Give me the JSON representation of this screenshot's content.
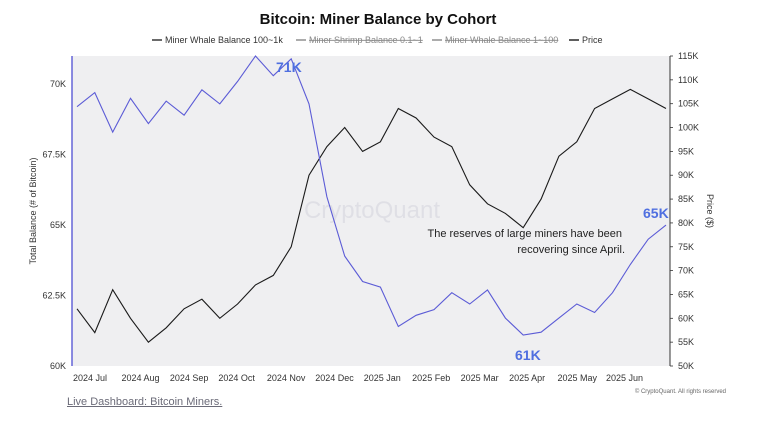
{
  "chart_data": {
    "type": "line",
    "title": "Bitcoin: Miner Balance by Cohort",
    "legend": {
      "placement": "top-center",
      "entries": [
        {
          "name": "Miner Whale Balance 100~1k",
          "color": "#2b2b2b",
          "visible": true
        },
        {
          "name": "Miner Shrimp Balance 0.1~1",
          "color": "#888888",
          "visible": false
        },
        {
          "name": "Miner Whale Balance 1~100",
          "color": "#888888",
          "visible": false
        },
        {
          "name": "Price",
          "color": "#1a1a1a",
          "visible": true
        }
      ]
    },
    "xlabel": "",
    "x_ticks": [
      "2024 Jul",
      "2024 Aug",
      "2024 Sep",
      "2024 Oct",
      "2024 Nov",
      "2024 Dec",
      "2025 Jan",
      "2025 Feb",
      "2025 Mar",
      "2025 Apr",
      "2025 May",
      "2025 Jun"
    ],
    "left_axis": {
      "label": "Total Balance (# of Bitcoin)",
      "ticks": [
        "60K",
        "62.5K",
        "65K",
        "67.5K",
        "70K"
      ],
      "ylim": [
        60000,
        71000
      ]
    },
    "right_axis": {
      "label": "Price ($)",
      "ticks": [
        "50K",
        "55K",
        "60K",
        "65K",
        "70K",
        "75K",
        "80K",
        "85K",
        "90K",
        "95K",
        "100K",
        "105K",
        "110K",
        "115K"
      ],
      "ylim": [
        50000,
        115000
      ]
    },
    "grid": false,
    "watermark": "CryptoQuant",
    "series": [
      {
        "name": "Miner Whale Balance 100~1k",
        "axis": "left",
        "color": "#5b5bd6",
        "x": [
          "2024 Jul",
          "2024 Jul",
          "2024 Jul",
          "2024 Aug",
          "2024 Aug",
          "2024 Sep",
          "2024 Sep",
          "2024 Sep",
          "2024 Oct",
          "2024 Oct",
          "2024 Oct",
          "2024 Oct",
          "2024 Nov",
          "2024 Nov",
          "2024 Nov",
          "2024 Dec",
          "2024 Dec",
          "2025 Jan",
          "2025 Jan",
          "2025 Jan",
          "2025 Feb",
          "2025 Feb",
          "2025 Feb",
          "2025 Mar",
          "2025 Mar",
          "2025 Apr",
          "2025 Apr",
          "2025 Apr",
          "2025 May",
          "2025 May",
          "2025 Jun",
          "2025 Jun",
          "2025 Jun",
          "2025 Jun"
        ],
        "values": [
          69200,
          69700,
          68300,
          69500,
          68600,
          69400,
          68900,
          69800,
          69300,
          70100,
          71000,
          70300,
          70900,
          69300,
          66000,
          63900,
          63000,
          62800,
          61400,
          61800,
          62000,
          62600,
          62200,
          62700,
          61700,
          61100,
          61200,
          61700,
          62200,
          61900,
          62600,
          63600,
          64500,
          65000
        ]
      },
      {
        "name": "Price",
        "axis": "right",
        "color": "#1a1a1a",
        "x": [
          "2024 Jul",
          "2024 Jul",
          "2024 Jul",
          "2024 Aug",
          "2024 Aug",
          "2024 Sep",
          "2024 Sep",
          "2024 Sep",
          "2024 Oct",
          "2024 Oct",
          "2024 Oct",
          "2024 Oct",
          "2024 Nov",
          "2024 Nov",
          "2024 Nov",
          "2024 Dec",
          "2024 Dec",
          "2025 Jan",
          "2025 Jan",
          "2025 Jan",
          "2025 Feb",
          "2025 Feb",
          "2025 Feb",
          "2025 Mar",
          "2025 Mar",
          "2025 Apr",
          "2025 Apr",
          "2025 Apr",
          "2025 May",
          "2025 May",
          "2025 Jun",
          "2025 Jun",
          "2025 Jun",
          "2025 Jun"
        ],
        "values": [
          62000,
          57000,
          66000,
          60000,
          55000,
          58000,
          62000,
          64000,
          60000,
          63000,
          67000,
          69000,
          75000,
          90000,
          96000,
          100000,
          95000,
          97000,
          104000,
          102000,
          98000,
          96000,
          88000,
          84000,
          82000,
          79000,
          85000,
          94000,
          97000,
          104000,
          106000,
          108000,
          106000,
          104000
        ]
      }
    ],
    "annotations": [
      {
        "text": "71K",
        "series": "Miner Whale Balance 100~1k",
        "x": "2024 Oct",
        "y": 71000,
        "color": "#4f6fe0"
      },
      {
        "text": "65K",
        "series": "Miner Whale Balance 100~1k",
        "x": "2025 Jun",
        "y": 65000,
        "color": "#4f6fe0"
      },
      {
        "text": "61K",
        "series": "Miner Whale Balance 100~1k",
        "x": "2025 Apr",
        "y": 61000,
        "color": "#4f6fe0"
      },
      {
        "text": "The reserves of large miners have been recovering since April.",
        "color": "#222222"
      }
    ],
    "copyright": "© CryptoQuant. All rights reserved"
  },
  "footer": {
    "link_text": "Live Dashboard: Bitcoin Miners."
  },
  "colors": {
    "accent": "#4f6fe0",
    "plot_bg": "#efeff1",
    "whale_line": "#5b5bd6",
    "price_line": "#1a1a1a"
  }
}
